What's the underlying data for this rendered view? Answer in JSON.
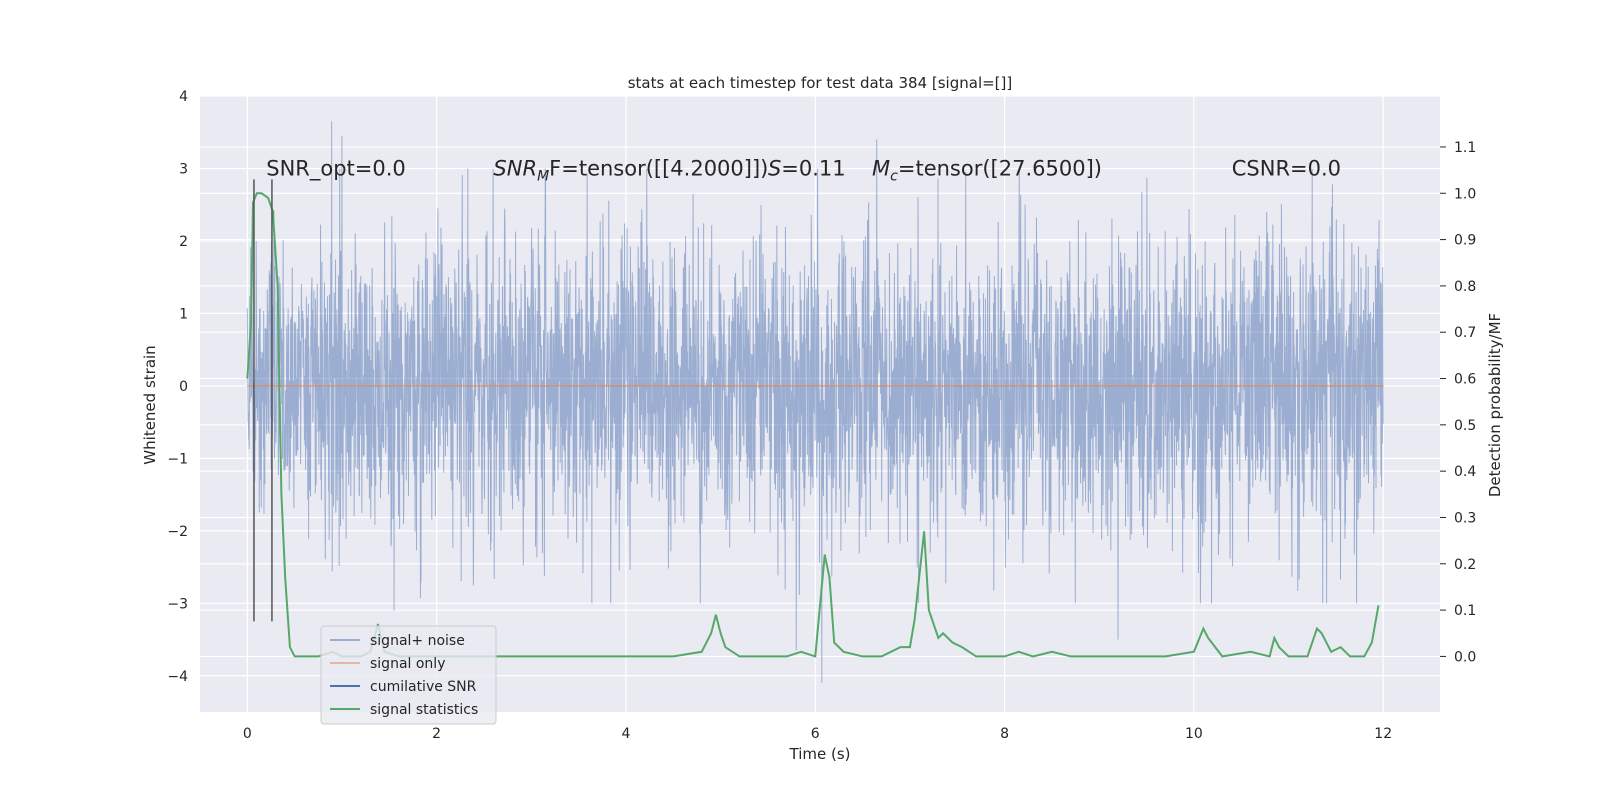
{
  "chart_data": {
    "type": "line",
    "title": "stats at each timestep for test data 384 [signal=[]]",
    "xlabel": "Time (s)",
    "ylabel": "Whitened strain",
    "y2label": "Detection probability/MF",
    "xlim": [
      -0.5,
      12.6
    ],
    "ylim": [
      -4.5,
      4.0
    ],
    "y2lim": [
      -0.12,
      1.21
    ],
    "xticks": [
      0,
      2,
      4,
      6,
      8,
      10,
      12
    ],
    "yticks": [
      -4,
      -3,
      -2,
      -1,
      0,
      1,
      2,
      3,
      4
    ],
    "y2ticks": [
      0.0,
      0.1,
      0.2,
      0.3,
      0.4,
      0.5,
      0.6,
      0.7,
      0.8,
      0.9,
      1.0,
      1.1
    ],
    "grid": true,
    "legend_placement": "lower-left",
    "annotations": [
      {
        "text": "SNR_opt=0.0",
        "x": 0.2,
        "y": 2.9
      },
      {
        "text": "SNR_MF=tensor([[4.2000]])",
        "main": "SNR",
        "sub": "M",
        "tail": "F=tensor([[4.2000]])",
        "x": 2.6,
        "y": 2.9
      },
      {
        "text": "S=0.11",
        "main": "S",
        "tail": "=0.11",
        "x": 5.5,
        "y": 2.9
      },
      {
        "text": "M_c=tensor([27.6500])",
        "main": "M",
        "sub": "c",
        "tail": "=tensor([27.6500])",
        "x": 6.6,
        "y": 2.9
      },
      {
        "text": "CSNR=0.0",
        "x": 10.4,
        "y": 2.9
      }
    ],
    "vlines": [
      0.07,
      0.26
    ],
    "vline_range": [
      -3.25,
      2.85
    ],
    "series": [
      {
        "name": "signal+ noise",
        "color": "#4c72b0",
        "kind": "noise",
        "t_range": [
          0,
          12
        ],
        "samples": 4096,
        "sigma": 1.0,
        "extremes": [
          [
            0.89,
            3.65
          ],
          [
            1.0,
            3.45
          ],
          [
            6.65,
            3.4
          ],
          [
            6.07,
            -4.1
          ],
          [
            5.8,
            -3.65
          ],
          [
            9.2,
            -3.5
          ],
          [
            1.55,
            -3.1
          ]
        ]
      },
      {
        "name": "signal only",
        "color": "#dd8452",
        "kind": "flat",
        "t_range": [
          0,
          12
        ],
        "value": 0.0
      },
      {
        "name": "cumilative SNR",
        "color": "#4c72b0",
        "kind": "none"
      },
      {
        "name": "signal statistics",
        "color": "#55a868",
        "kind": "line",
        "axis": "right",
        "x": [
          0.0,
          0.04,
          0.06,
          0.1,
          0.15,
          0.22,
          0.27,
          0.32,
          0.36,
          0.4,
          0.45,
          0.5,
          0.6,
          0.75,
          0.9,
          1.0,
          1.2,
          1.3,
          1.38,
          1.45,
          1.6,
          2.0,
          2.5,
          3.0,
          3.5,
          4.0,
          4.5,
          4.8,
          4.9,
          4.95,
          5.0,
          5.05,
          5.2,
          5.5,
          5.7,
          5.85,
          6.0,
          6.1,
          6.15,
          6.2,
          6.3,
          6.5,
          6.7,
          6.9,
          7.0,
          7.05,
          7.15,
          7.2,
          7.3,
          7.35,
          7.45,
          7.55,
          7.7,
          8.0,
          8.15,
          8.3,
          8.5,
          8.7,
          9.0,
          9.3,
          9.5,
          9.7,
          10.0,
          10.1,
          10.15,
          10.3,
          10.6,
          10.8,
          10.85,
          10.9,
          11.0,
          11.2,
          11.3,
          11.35,
          11.45,
          11.55,
          11.65,
          11.8,
          11.88,
          11.95
        ],
        "values": [
          0.6,
          0.72,
          0.98,
          1.0,
          1.0,
          0.99,
          0.96,
          0.8,
          0.35,
          0.17,
          0.02,
          0.0,
          0.0,
          0.0,
          0.01,
          0.0,
          0.0,
          0.01,
          0.07,
          0.01,
          0.0,
          0.0,
          0.0,
          0.0,
          0.0,
          0.0,
          0.0,
          0.01,
          0.05,
          0.09,
          0.05,
          0.02,
          0.0,
          0.0,
          0.0,
          0.01,
          0.0,
          0.22,
          0.17,
          0.03,
          0.01,
          0.0,
          0.0,
          0.02,
          0.02,
          0.08,
          0.27,
          0.1,
          0.04,
          0.05,
          0.03,
          0.02,
          0.0,
          0.0,
          0.01,
          0.0,
          0.01,
          0.0,
          0.0,
          0.0,
          0.0,
          0.0,
          0.01,
          0.06,
          0.04,
          0.0,
          0.01,
          0.0,
          0.04,
          0.02,
          0.0,
          0.0,
          0.06,
          0.05,
          0.01,
          0.02,
          0.0,
          0.0,
          0.03,
          0.11
        ]
      }
    ]
  },
  "legend": {
    "items": [
      {
        "label": "signal+ noise",
        "color": "#4c72b0",
        "alpha": 0.5
      },
      {
        "label": "signal only",
        "color": "#dd8452",
        "alpha": 0.5
      },
      {
        "label": "cumilative SNR",
        "color": "#4c72b0",
        "alpha": 1.0
      },
      {
        "label": "signal statistics",
        "color": "#55a868",
        "alpha": 1.0
      }
    ]
  },
  "colors": {
    "plot_background": "#eaeaf2",
    "grid": "#ffffff",
    "vline": "#555555"
  }
}
